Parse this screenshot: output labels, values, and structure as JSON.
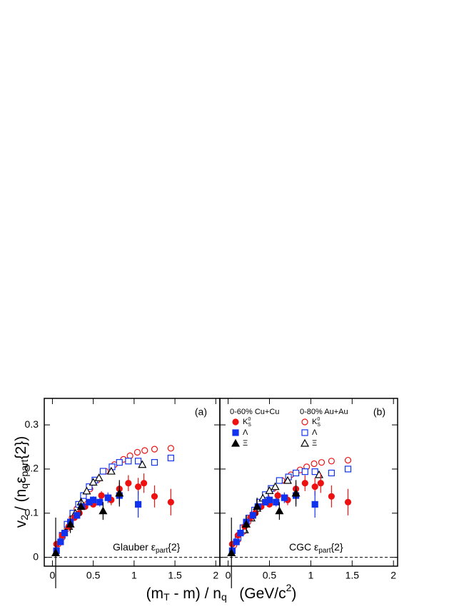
{
  "chart_data": [
    {
      "type": "scatter",
      "label": "(a)",
      "annotation": [
        "Glauber ε",
        "part",
        "{2}"
      ],
      "ylabel": [
        "v",
        "2",
        " / (n",
        "q",
        "ε",
        "part",
        "{2})"
      ],
      "xlabel": [
        "(m",
        "T",
        " - m) / n",
        "q",
        "   (GeV/c",
        "2",
        ")"
      ],
      "xlim": [
        -0.1,
        2.05
      ],
      "ylim": [
        -0.02,
        0.36
      ],
      "xticks": [
        0,
        0.5,
        1,
        1.5,
        2
      ],
      "yticks": [
        0,
        0.1,
        0.2,
        0.3
      ],
      "hline": 0,
      "series": [
        {
          "color": "#ee1111",
          "marker": "circle",
          "filled": false,
          "x": [
            0.07,
            0.12,
            0.18,
            0.24,
            0.3,
            0.38,
            0.46,
            0.55,
            0.65,
            0.76,
            0.87,
            0.95,
            1.04,
            1.13,
            1.25,
            1.45
          ],
          "values": [
            0.03,
            0.045,
            0.065,
            0.09,
            0.11,
            0.13,
            0.155,
            0.175,
            0.195,
            0.21,
            0.222,
            0.23,
            0.238,
            0.242,
            0.245,
            0.247
          ]
        },
        {
          "color": "#1133ee",
          "marker": "square",
          "filled": false,
          "x": [
            0.12,
            0.18,
            0.25,
            0.32,
            0.38,
            0.45,
            0.52,
            0.62,
            0.73,
            0.82,
            0.93,
            1.05,
            1.25,
            1.45
          ],
          "values": [
            0.05,
            0.075,
            0.1,
            0.12,
            0.14,
            0.16,
            0.175,
            0.195,
            0.205,
            0.215,
            0.218,
            0.218,
            0.215,
            0.225
          ]
        },
        {
          "color": "#000000",
          "marker": "triangle",
          "filled": false,
          "x": [
            0.2,
            0.28,
            0.35,
            0.42,
            0.5,
            0.57,
            0.72,
            1.1
          ],
          "values": [
            0.07,
            0.1,
            0.125,
            0.15,
            0.17,
            0.18,
            0.195,
            0.21
          ]
        },
        {
          "color": "#ee1111",
          "marker": "circle",
          "filled": true,
          "x": [
            0.05,
            0.12,
            0.2,
            0.27,
            0.33,
            0.4,
            0.5,
            0.6,
            0.72,
            0.82,
            0.93,
            1.05,
            1.12,
            1.25,
            1.45
          ],
          "values": [
            0.03,
            0.05,
            0.07,
            0.09,
            0.1,
            0.115,
            0.12,
            0.14,
            0.13,
            0.155,
            0.168,
            0.16,
            0.168,
            0.138,
            0.125
          ],
          "errors": [
            0.005,
            0.004,
            0.004,
            0.004,
            0.005,
            0.006,
            0.007,
            0.01,
            0.012,
            0.015,
            0.018,
            0.02,
            0.022,
            0.025,
            0.03
          ]
        },
        {
          "color": "#1133ee",
          "marker": "square",
          "filled": true,
          "x": [
            0.05,
            0.1,
            0.15,
            0.22,
            0.3,
            0.36,
            0.45,
            0.5,
            0.58,
            0.68,
            0.82,
            1.05
          ],
          "values": [
            0.015,
            0.035,
            0.055,
            0.08,
            0.095,
            0.115,
            0.125,
            0.13,
            0.125,
            0.135,
            0.14,
            0.12
          ],
          "errors": [
            0.01,
            0.006,
            0.005,
            0.005,
            0.005,
            0.006,
            0.007,
            0.008,
            0.01,
            0.012,
            0.02,
            0.03
          ]
        },
        {
          "color": "#000000",
          "marker": "triangle",
          "filled": true,
          "x": [
            0.04,
            0.22,
            0.35,
            0.62,
            0.82
          ],
          "values": [
            0.01,
            0.075,
            0.115,
            0.105,
            0.145
          ],
          "errors": [
            0.08,
            0.02,
            0.02,
            0.02,
            0.03
          ]
        }
      ]
    },
    {
      "type": "scatter",
      "label": "(b)",
      "annotation": [
        "CGC ε",
        "part",
        "{2}"
      ],
      "legend_titles": [
        "0-60% Cu+Cu",
        "0-80% Au+Au"
      ],
      "xlim": [
        -0.1,
        2.05
      ],
      "ylim": [
        -0.02,
        0.36
      ],
      "xticks": [
        0,
        0.5,
        1,
        1.5,
        2
      ],
      "yticks": [
        0,
        0.1,
        0.2,
        0.3
      ],
      "hline": 0,
      "series": [
        {
          "name": "K",
          "name_sub": "S",
          "name_sup": "0",
          "color": "#ee1111",
          "marker": "circle",
          "filled": false,
          "x": [
            0.07,
            0.12,
            0.18,
            0.24,
            0.3,
            0.38,
            0.46,
            0.55,
            0.65,
            0.76,
            0.87,
            0.95,
            1.04,
            1.13,
            1.25,
            1.45
          ],
          "values": [
            0.027,
            0.04,
            0.058,
            0.08,
            0.098,
            0.116,
            0.138,
            0.156,
            0.174,
            0.187,
            0.198,
            0.205,
            0.212,
            0.215,
            0.218,
            0.22
          ]
        },
        {
          "name": "Λ",
          "color": "#1133ee",
          "marker": "square",
          "filled": false,
          "x": [
            0.12,
            0.18,
            0.25,
            0.32,
            0.38,
            0.45,
            0.52,
            0.62,
            0.73,
            0.82,
            0.93,
            1.05,
            1.25,
            1.45
          ],
          "values": [
            0.045,
            0.067,
            0.089,
            0.107,
            0.125,
            0.142,
            0.156,
            0.174,
            0.182,
            0.191,
            0.194,
            0.194,
            0.191,
            0.2
          ]
        },
        {
          "name": "Ξ",
          "color": "#000000",
          "marker": "triangle",
          "filled": false,
          "x": [
            0.2,
            0.28,
            0.35,
            0.42,
            0.5,
            0.57,
            0.72,
            1.1
          ],
          "values": [
            0.062,
            0.089,
            0.111,
            0.134,
            0.151,
            0.16,
            0.174,
            0.187
          ]
        },
        {
          "name": "K",
          "name_sub": "S",
          "name_sup": "0",
          "color": "#ee1111",
          "marker": "circle",
          "filled": true,
          "x": [
            0.05,
            0.12,
            0.2,
            0.27,
            0.33,
            0.4,
            0.5,
            0.6,
            0.72,
            0.82,
            0.93,
            1.05,
            1.12,
            1.25,
            1.45
          ],
          "values": [
            0.03,
            0.05,
            0.07,
            0.09,
            0.1,
            0.115,
            0.12,
            0.14,
            0.13,
            0.155,
            0.168,
            0.16,
            0.168,
            0.138,
            0.125
          ],
          "errors": [
            0.005,
            0.004,
            0.004,
            0.004,
            0.005,
            0.006,
            0.007,
            0.01,
            0.012,
            0.015,
            0.018,
            0.02,
            0.022,
            0.025,
            0.03
          ]
        },
        {
          "name": "Λ",
          "color": "#1133ee",
          "marker": "square",
          "filled": true,
          "x": [
            0.05,
            0.1,
            0.15,
            0.22,
            0.3,
            0.36,
            0.45,
            0.5,
            0.58,
            0.68,
            0.82,
            1.05
          ],
          "values": [
            0.015,
            0.035,
            0.055,
            0.08,
            0.095,
            0.115,
            0.125,
            0.13,
            0.125,
            0.135,
            0.14,
            0.12
          ],
          "errors": [
            0.01,
            0.006,
            0.005,
            0.005,
            0.005,
            0.006,
            0.007,
            0.008,
            0.01,
            0.012,
            0.02,
            0.03
          ]
        },
        {
          "name": "Ξ",
          "color": "#000000",
          "marker": "triangle",
          "filled": true,
          "x": [
            0.04,
            0.22,
            0.35,
            0.62,
            0.82
          ],
          "values": [
            0.01,
            0.075,
            0.115,
            0.105,
            0.145
          ],
          "errors": [
            0.08,
            0.02,
            0.02,
            0.02,
            0.03
          ]
        }
      ]
    }
  ]
}
